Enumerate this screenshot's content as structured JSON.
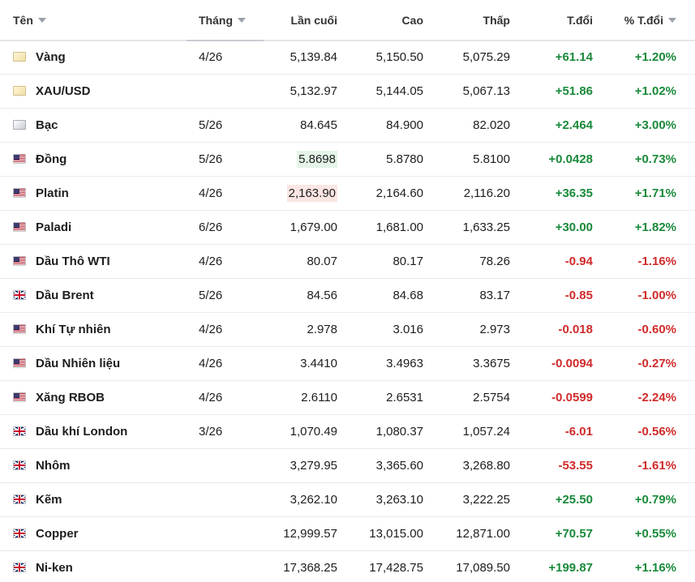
{
  "columns": {
    "name": "Tên",
    "month": "Tháng",
    "last": "Lần cuối",
    "high": "Cao",
    "low": "Thấp",
    "change": "T.đổi",
    "change_pct": "% T.đổi"
  },
  "colors": {
    "positive": "#198a3a",
    "negative": "#d02b2b",
    "flash_up": "#e5f4e8",
    "flash_down": "#fbe6e4"
  },
  "rows": [
    {
      "icon": "gold-flag-icon",
      "name": "Vàng",
      "month": "4/26",
      "last": "5,139.84",
      "high": "5,150.50",
      "low": "5,075.29",
      "change": "+61.14",
      "change_pct": "+1.20%",
      "direction": "up"
    },
    {
      "icon": "gold-flag-icon",
      "name": "XAU/USD",
      "month": "",
      "last": "5,132.97",
      "high": "5,144.05",
      "low": "5,067.13",
      "change": "+51.86",
      "change_pct": "+1.02%",
      "direction": "up"
    },
    {
      "icon": "silver-flag-icon",
      "name": "Bạc",
      "month": "5/26",
      "last": "84.645",
      "high": "84.900",
      "low": "82.020",
      "change": "+2.464",
      "change_pct": "+3.00%",
      "direction": "up"
    },
    {
      "icon": "us-flag-icon",
      "name": "Đồng",
      "month": "5/26",
      "last": "5.8698",
      "high": "5.8780",
      "low": "5.8100",
      "change": "+0.0428",
      "change_pct": "+0.73%",
      "direction": "up",
      "flash": "up"
    },
    {
      "icon": "us-flag-icon",
      "name": "Platin",
      "month": "4/26",
      "last": "2,163.90",
      "high": "2,164.60",
      "low": "2,116.20",
      "change": "+36.35",
      "change_pct": "+1.71%",
      "direction": "up",
      "flash": "down"
    },
    {
      "icon": "us-flag-icon",
      "name": "Paladi",
      "month": "6/26",
      "last": "1,679.00",
      "high": "1,681.00",
      "low": "1,633.25",
      "change": "+30.00",
      "change_pct": "+1.82%",
      "direction": "up"
    },
    {
      "icon": "us-flag-icon",
      "name": "Dầu Thô WTI",
      "month": "4/26",
      "last": "80.07",
      "high": "80.17",
      "low": "78.26",
      "change": "-0.94",
      "change_pct": "-1.16%",
      "direction": "down"
    },
    {
      "icon": "uk-flag-icon",
      "name": "Dầu Brent",
      "month": "5/26",
      "last": "84.56",
      "high": "84.68",
      "low": "83.17",
      "change": "-0.85",
      "change_pct": "-1.00%",
      "direction": "down"
    },
    {
      "icon": "us-flag-icon",
      "name": "Khí Tự nhiên",
      "month": "4/26",
      "last": "2.978",
      "high": "3.016",
      "low": "2.973",
      "change": "-0.018",
      "change_pct": "-0.60%",
      "direction": "down"
    },
    {
      "icon": "us-flag-icon",
      "name": "Dầu Nhiên liệu",
      "month": "4/26",
      "last": "3.4410",
      "high": "3.4963",
      "low": "3.3675",
      "change": "-0.0094",
      "change_pct": "-0.27%",
      "direction": "down"
    },
    {
      "icon": "us-flag-icon",
      "name": "Xăng RBOB",
      "month": "4/26",
      "last": "2.6110",
      "high": "2.6531",
      "low": "2.5754",
      "change": "-0.0599",
      "change_pct": "-2.24%",
      "direction": "down"
    },
    {
      "icon": "uk-flag-icon",
      "name": "Dầu khí London",
      "month": "3/26",
      "last": "1,070.49",
      "high": "1,080.37",
      "low": "1,057.24",
      "change": "-6.01",
      "change_pct": "-0.56%",
      "direction": "down"
    },
    {
      "icon": "uk-flag-icon",
      "name": "Nhôm",
      "month": "",
      "last": "3,279.95",
      "high": "3,365.60",
      "low": "3,268.80",
      "change": "-53.55",
      "change_pct": "-1.61%",
      "direction": "down"
    },
    {
      "icon": "uk-flag-icon",
      "name": "Kẽm",
      "month": "",
      "last": "3,262.10",
      "high": "3,263.10",
      "low": "3,222.25",
      "change": "+25.50",
      "change_pct": "+0.79%",
      "direction": "up"
    },
    {
      "icon": "uk-flag-icon",
      "name": "Copper",
      "month": "",
      "last": "12,999.57",
      "high": "13,015.00",
      "low": "12,871.00",
      "change": "+70.57",
      "change_pct": "+0.55%",
      "direction": "up"
    },
    {
      "icon": "uk-flag-icon",
      "name": "Ni-ken",
      "month": "",
      "last": "17,368.25",
      "high": "17,428.75",
      "low": "17,089.50",
      "change": "+199.87",
      "change_pct": "+1.16%",
      "direction": "up"
    }
  ]
}
